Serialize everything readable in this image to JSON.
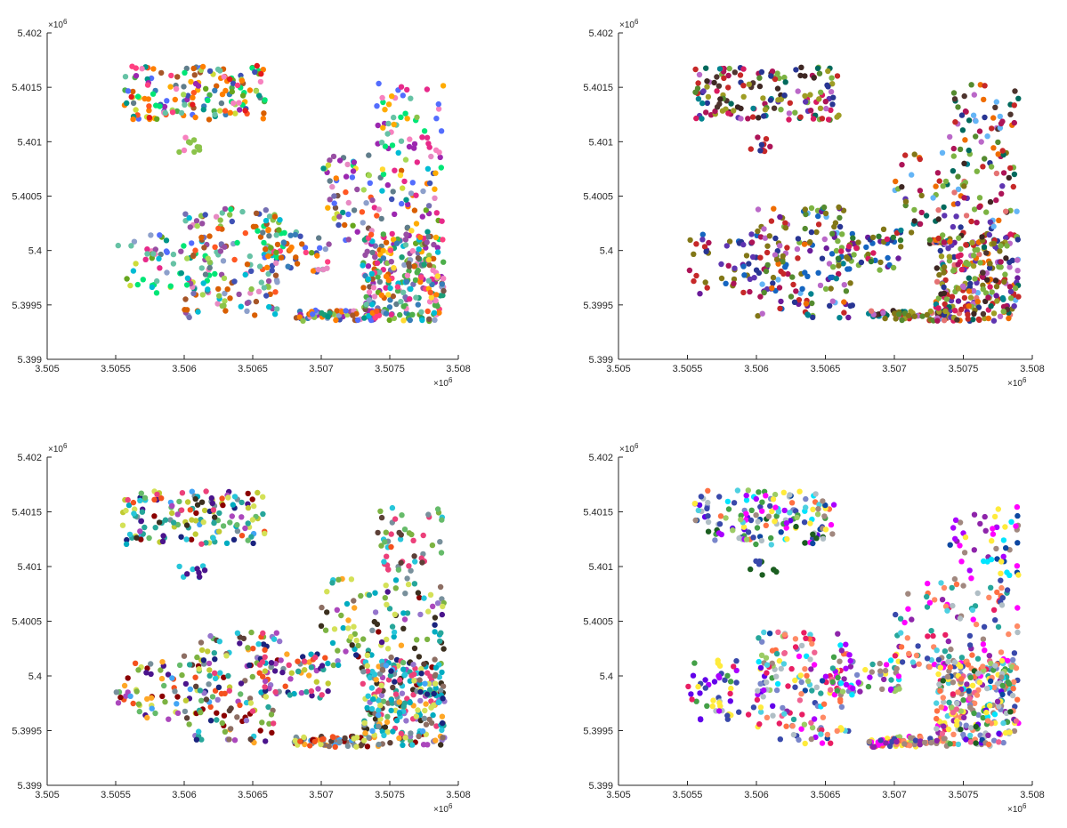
{
  "chart_data": [
    {
      "type": "scatter",
      "title": "",
      "xlabel": "",
      "ylabel": "",
      "xlim": [
        3505000,
        3508000
      ],
      "ylim": [
        5399000,
        5402000
      ],
      "x_ticks": [
        "3.505",
        "3.5055",
        "3.506",
        "3.5065",
        "3.507",
        "3.5075",
        "3.508"
      ],
      "y_ticks": [
        "5.399",
        "5.3995",
        "5.4",
        "5.4005",
        "5.401",
        "5.4015",
        "5.402"
      ],
      "x_multiplier": "×10",
      "y_multiplier": "×10",
      "exponent": "6",
      "grid": false,
      "note": "many small clusters, each its own color",
      "palette": [
        "#e41a1c",
        "#377eb8",
        "#4daf4a",
        "#984ea3",
        "#ff7f00",
        "#a65628",
        "#f781bf",
        "#66c2a5",
        "#8da0cb",
        "#e78ac3",
        "#a6d854",
        "#ffd92f",
        "#1b9e77",
        "#7570b3",
        "#e7298a",
        "#66a61e",
        "#d95f02",
        "#00bcd4",
        "#8bc34a",
        "#3f51b5",
        "#ff5722",
        "#9c27b0",
        "#009688",
        "#cddc39",
        "#795548",
        "#607d8b",
        "#00e676",
        "#ff4081",
        "#536dfe",
        "#ffab00"
      ],
      "groups": [
        {
          "x": [
            3505550,
            3506600
          ],
          "y": [
            5401200,
            5401700
          ],
          "n": 160
        },
        {
          "x": [
            3505950,
            3506150
          ],
          "y": [
            5400900,
            5401050
          ],
          "n": 10
        },
        {
          "x": [
            3505500,
            3506200
          ],
          "y": [
            5399600,
            5400150
          ],
          "n": 60
        },
        {
          "x": [
            3506000,
            3506700
          ],
          "y": [
            5399380,
            5400400
          ],
          "n": 140
        },
        {
          "x": [
            3506550,
            3507050
          ],
          "y": [
            5399800,
            5400200
          ],
          "n": 60
        },
        {
          "x": [
            3506800,
            3507400
          ],
          "y": [
            5399350,
            5399450
          ],
          "n": 70
        },
        {
          "x": [
            3507000,
            3507900
          ],
          "y": [
            5400050,
            5400900
          ],
          "n": 110
        },
        {
          "x": [
            3507300,
            3507900
          ],
          "y": [
            5399350,
            5400150
          ],
          "n": 260
        },
        {
          "x": [
            3507400,
            3507900
          ],
          "y": [
            5400900,
            5401550
          ],
          "n": 50
        }
      ]
    },
    {
      "type": "scatter",
      "title": "",
      "xlabel": "",
      "ylabel": "",
      "xlim": [
        3505000,
        3508000
      ],
      "ylim": [
        5399000,
        5402000
      ],
      "x_ticks": [
        "3.505",
        "3.5055",
        "3.506",
        "3.5065",
        "3.507",
        "3.5075",
        "3.508"
      ],
      "y_ticks": [
        "5.399",
        "5.3995",
        "5.4",
        "5.4005",
        "5.401",
        "5.4015",
        "5.402"
      ],
      "x_multiplier": "×10",
      "y_multiplier": "×10",
      "exponent": "6",
      "grid": false,
      "note": "fewer, larger clusters",
      "palette": [
        "#2e7d32",
        "#1565c0",
        "#c62828",
        "#6a1b9a",
        "#827717",
        "#3e2723",
        "#00838f",
        "#ad1457",
        "#ef6c00",
        "#283593",
        "#9e9d24",
        "#4e342e",
        "#00695c",
        "#d81b60",
        "#5e35b1",
        "#558b2f",
        "#7cb342",
        "#e57373",
        "#64b5f6",
        "#ba68c8"
      ],
      "groups": [
        {
          "x": [
            3505550,
            3506600
          ],
          "y": [
            5401200,
            5401700
          ],
          "n": 150
        },
        {
          "x": [
            3505950,
            3506100
          ],
          "y": [
            5400900,
            5401050
          ],
          "n": 10
        },
        {
          "x": [
            3505500,
            3506200
          ],
          "y": [
            5399600,
            5400150
          ],
          "n": 60
        },
        {
          "x": [
            3506000,
            3506700
          ],
          "y": [
            5399380,
            5400400
          ],
          "n": 140
        },
        {
          "x": [
            3506550,
            3507050
          ],
          "y": [
            5399800,
            5400200
          ],
          "n": 60
        },
        {
          "x": [
            3506800,
            3507400
          ],
          "y": [
            5399350,
            5399450
          ],
          "n": 70
        },
        {
          "x": [
            3507000,
            3507900
          ],
          "y": [
            5400050,
            5400900
          ],
          "n": 110
        },
        {
          "x": [
            3507300,
            3507900
          ],
          "y": [
            5399350,
            5400150
          ],
          "n": 260
        },
        {
          "x": [
            3507400,
            3507900
          ],
          "y": [
            5400900,
            5401550
          ],
          "n": 50
        }
      ]
    },
    {
      "type": "scatter",
      "title": "",
      "xlabel": "",
      "ylabel": "",
      "xlim": [
        3505000,
        3508000
      ],
      "ylim": [
        5399000,
        5402000
      ],
      "x_ticks": [
        "3.505",
        "3.5055",
        "3.506",
        "3.5065",
        "3.507",
        "3.5075",
        "3.508"
      ],
      "y_ticks": [
        "5.399",
        "5.3995",
        "5.4",
        "5.4005",
        "5.401",
        "5.4015",
        "5.402"
      ],
      "x_multiplier": "×10",
      "y_multiplier": "×10",
      "exponent": "6",
      "grid": false,
      "note": "medium clusters",
      "palette": [
        "#8b0000",
        "#3b2f1e",
        "#1a237e",
        "#4a148c",
        "#8d6e63",
        "#00acc1",
        "#7cb342",
        "#f4511e",
        "#9575cd",
        "#26a69a",
        "#c0ca33",
        "#5d4037",
        "#42a5f5",
        "#ec407a",
        "#78909c",
        "#ab47bc",
        "#66bb6a",
        "#ffa726",
        "#26c6da",
        "#d4e157"
      ],
      "groups": [
        {
          "x": [
            3505550,
            3506600
          ],
          "y": [
            5401200,
            5401700
          ],
          "n": 150
        },
        {
          "x": [
            3505950,
            3506150
          ],
          "y": [
            5400900,
            5401050
          ],
          "n": 10
        },
        {
          "x": [
            3505500,
            3506200
          ],
          "y": [
            5399600,
            5400150
          ],
          "n": 60
        },
        {
          "x": [
            3506000,
            3506700
          ],
          "y": [
            5399380,
            5400400
          ],
          "n": 140
        },
        {
          "x": [
            3506550,
            3507050
          ],
          "y": [
            5399800,
            5400200
          ],
          "n": 60
        },
        {
          "x": [
            3506800,
            3507400
          ],
          "y": [
            5399350,
            5399450
          ],
          "n": 70
        },
        {
          "x": [
            3507000,
            3507900
          ],
          "y": [
            5400050,
            5400900
          ],
          "n": 110
        },
        {
          "x": [
            3507300,
            3507900
          ],
          "y": [
            5399350,
            5400150
          ],
          "n": 260
        },
        {
          "x": [
            3507400,
            3507900
          ],
          "y": [
            5400900,
            5401550
          ],
          "n": 50
        }
      ]
    },
    {
      "type": "scatter",
      "title": "",
      "xlabel": "",
      "ylabel": "",
      "xlim": [
        3505000,
        3508000
      ],
      "ylim": [
        5399000,
        5402000
      ],
      "x_ticks": [
        "3.505",
        "3.5055",
        "3.506",
        "3.5065",
        "3.507",
        "3.5075",
        "3.508"
      ],
      "y_ticks": [
        "5.399",
        "5.3995",
        "5.4",
        "5.4005",
        "5.401",
        "5.4015",
        "5.402"
      ],
      "x_multiplier": "×10",
      "y_multiplier": "×10",
      "exponent": "6",
      "grid": false,
      "note": "medium clusters, varied colors",
      "palette": [
        "#0d47a1",
        "#ff00ff",
        "#00e5ff",
        "#6200ea",
        "#aa00ff",
        "#b0bec5",
        "#e91e63",
        "#1b5e20",
        "#ff7043",
        "#ffeb3b",
        "#3949ab",
        "#8e24aa",
        "#43a047",
        "#f06292",
        "#4dd0e1",
        "#9ccc65",
        "#7986cb",
        "#a1887f",
        "#26a69a",
        "#ff8a65"
      ],
      "groups": [
        {
          "x": [
            3505550,
            3506600
          ],
          "y": [
            5401200,
            5401700
          ],
          "n": 150
        },
        {
          "x": [
            3505950,
            3506150
          ],
          "y": [
            5400900,
            5401050
          ],
          "n": 10
        },
        {
          "x": [
            3505500,
            3506200
          ],
          "y": [
            5399600,
            5400150
          ],
          "n": 60
        },
        {
          "x": [
            3506000,
            3506700
          ],
          "y": [
            5399380,
            5400400
          ],
          "n": 140
        },
        {
          "x": [
            3506550,
            3507050
          ],
          "y": [
            5399800,
            5400200
          ],
          "n": 60
        },
        {
          "x": [
            3506800,
            3507400
          ],
          "y": [
            5399350,
            5399450
          ],
          "n": 70
        },
        {
          "x": [
            3507000,
            3507900
          ],
          "y": [
            5400050,
            5400900
          ],
          "n": 110
        },
        {
          "x": [
            3507300,
            3507900
          ],
          "y": [
            5399350,
            5400150
          ],
          "n": 260
        },
        {
          "x": [
            3507400,
            3507900
          ],
          "y": [
            5400900,
            5401550
          ],
          "n": 50
        }
      ]
    }
  ]
}
